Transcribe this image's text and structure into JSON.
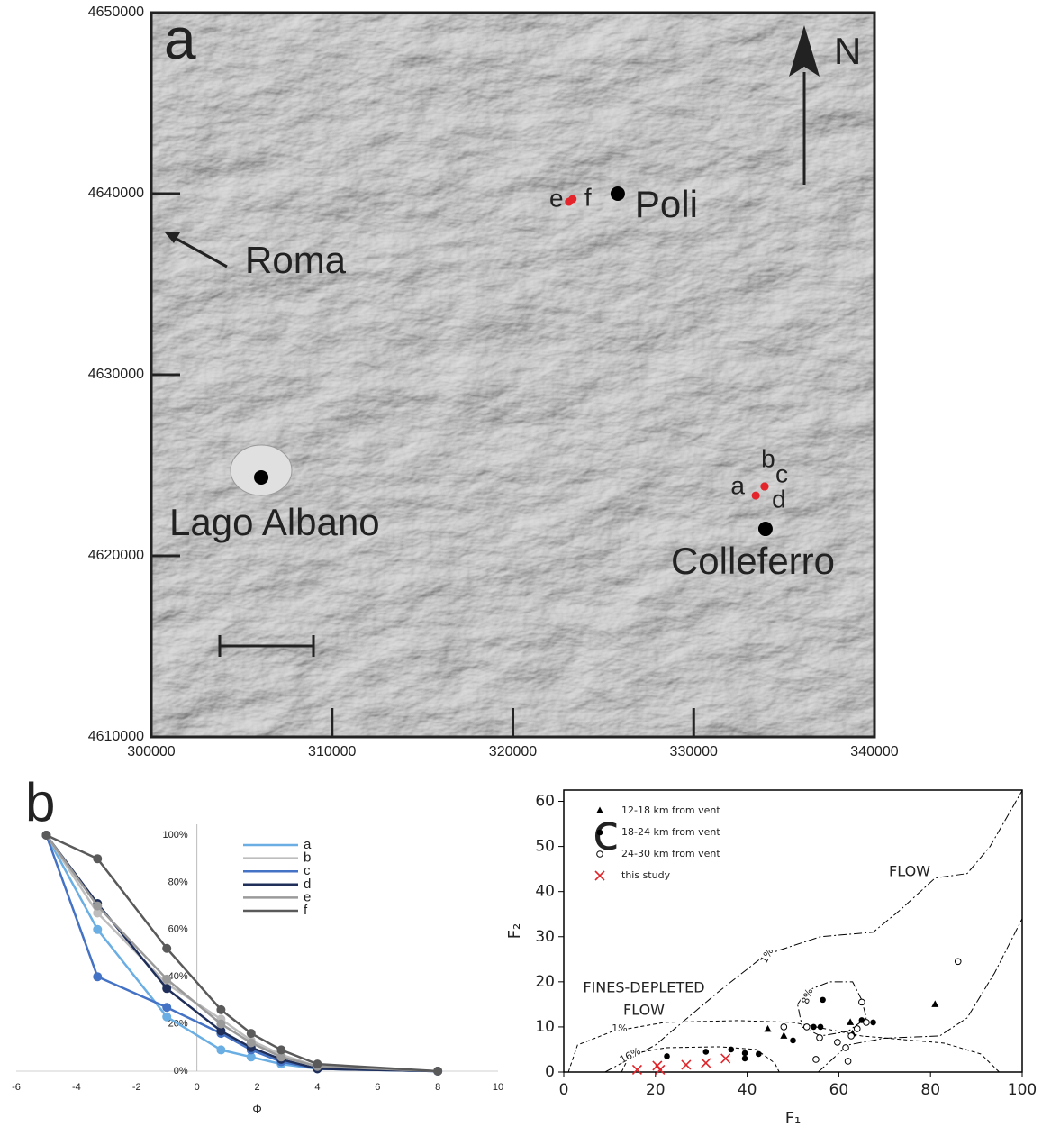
{
  "chart_data": [
    {
      "type": "map",
      "panel": "a",
      "xlim": [
        300000,
        340000
      ],
      "ylim": [
        4610000,
        4650000
      ],
      "xticks": [
        300000,
        310000,
        320000,
        330000,
        340000
      ],
      "yticks": [
        4610000,
        4620000,
        4630000,
        4640000,
        4650000
      ],
      "places": [
        {
          "label": "Poli",
          "x": 325800,
          "y": 4640000
        },
        {
          "label": "Lago Albano",
          "x": 306080,
          "y": 4624330
        },
        {
          "label": "Colleferro",
          "x": 333970,
          "y": 4621490
        }
      ],
      "sites": [
        {
          "label": "e",
          "x": 323100,
          "y": 4639550
        },
        {
          "label": "f",
          "x": 323300,
          "y": 4639700
        },
        {
          "label": "a",
          "x": 333430,
          "y": 4623330
        },
        {
          "label": "b",
          "x": 333920,
          "y": 4623830
        },
        {
          "label": "c",
          "x": 333920,
          "y": 4623830
        },
        {
          "label": "d",
          "x": 333920,
          "y": 4623830
        }
      ],
      "site_color": "#e3242b",
      "annotations": [
        "Roma",
        "N"
      ]
    },
    {
      "type": "line",
      "panel": "b",
      "xlabel": "Φ",
      "x": [
        -5,
        -3.3,
        -1,
        0.8,
        1.8,
        2.8,
        4,
        8
      ],
      "xlim": [
        -6,
        10
      ],
      "xticks": [
        -6,
        -4,
        -2,
        0,
        2,
        4,
        6,
        8,
        10
      ],
      "ylim": [
        0,
        100
      ],
      "yticks": [
        {
          "value": 0,
          "label": "0%"
        },
        {
          "value": 20,
          "label": "20%"
        },
        {
          "value": 40,
          "label": "40%"
        },
        {
          "value": 60,
          "label": "60%"
        },
        {
          "value": 80,
          "label": "80%"
        },
        {
          "value": 100,
          "label": "100%"
        }
      ],
      "series": [
        {
          "name": "a",
          "color": "#6aaee3",
          "values": [
            100,
            60,
            23,
            9,
            6,
            3,
            1,
            0
          ]
        },
        {
          "name": "b",
          "color": "#bdbdbd",
          "values": [
            100,
            67,
            37,
            22,
            13,
            7,
            2,
            0
          ]
        },
        {
          "name": "c",
          "color": "#4472c4",
          "values": [
            100,
            40,
            27,
            16,
            9,
            4,
            1,
            0
          ]
        },
        {
          "name": "d",
          "color": "#1f2f5a",
          "values": [
            100,
            71,
            35,
            17,
            10,
            5,
            1,
            0
          ]
        },
        {
          "name": "e",
          "color": "#9a9a9a",
          "values": [
            100,
            70,
            39,
            20,
            12,
            6,
            2,
            0
          ]
        },
        {
          "name": "f",
          "color": "#5a5a5a",
          "values": [
            100,
            90,
            52,
            26,
            16,
            9,
            3,
            0
          ]
        }
      ]
    },
    {
      "type": "scatter",
      "panel": "c",
      "xlabel": "F₁",
      "ylabel": "F₂",
      "xlim": [
        0,
        100
      ],
      "ylim": [
        0,
        62.5
      ],
      "xticks": [
        0,
        20,
        40,
        60,
        80,
        100
      ],
      "yticks": [
        0,
        10,
        20,
        30,
        40,
        50,
        60
      ],
      "series": [
        {
          "name": "12-18 km from vent",
          "marker": "triangle",
          "color": "#000000",
          "x": [
            44.5,
            48,
            62.5,
            63,
            81
          ],
          "y": [
            9.5,
            8,
            11,
            8.5,
            15
          ]
        },
        {
          "name": "18-24 km from vent",
          "marker": "circle",
          "color": "#000000",
          "x": [
            22.5,
            31,
            36.5,
            39.5,
            39.5,
            42.5,
            50,
            54.5,
            56,
            56.5,
            65,
            67.5
          ],
          "y": [
            3.5,
            4.5,
            5,
            4.2,
            3,
            4,
            7,
            10,
            10,
            16,
            11.5,
            11
          ]
        },
        {
          "name": "24-30 km from vent",
          "marker": "open-circle",
          "color": "#000000",
          "x": [
            48,
            53,
            55.8,
            55,
            59.7,
            61.5,
            62,
            62.7,
            64,
            65,
            66,
            86
          ],
          "y": [
            10,
            10,
            7.6,
            2.8,
            6.6,
            5.4,
            2.4,
            8,
            9.6,
            15.5,
            11,
            24.5
          ]
        },
        {
          "name": "this study",
          "marker": "x",
          "color": "#e0242a",
          "x": [
            16,
            20.4,
            21,
            26.7,
            31,
            35.3
          ],
          "y": [
            0.5,
            1.4,
            0.5,
            1.6,
            2,
            3
          ]
        }
      ],
      "contours": [
        {
          "label": "1%",
          "style": "dash-dot",
          "x": [
            9,
            20,
            34,
            44,
            56,
            67.5,
            73.5,
            81,
            88,
            93,
            100
          ],
          "y": [
            0,
            6,
            18,
            26,
            30,
            31,
            36,
            43,
            44,
            50,
            62.4
          ]
        },
        {
          "style": "dash-dot",
          "x": [
            55.5,
            62,
            70,
            82,
            88,
            94,
            100
          ],
          "y": [
            0,
            6,
            7.5,
            8,
            12,
            22,
            34
          ]
        },
        {
          "label": "8%",
          "style": "dash-dot",
          "x": [
            51,
            53,
            58,
            63,
            65,
            66,
            62,
            56,
            52,
            51
          ],
          "y": [
            15,
            18,
            20,
            20,
            16,
            12,
            9,
            8,
            10,
            15
          ]
        },
        {
          "label": "1%",
          "style": "dashed",
          "x": [
            1,
            3,
            10.6,
            22,
            38,
            50,
            65,
            83,
            91,
            95
          ],
          "y": [
            0,
            6,
            9,
            11,
            11.4,
            11,
            8,
            6.4,
            4,
            0
          ]
        },
        {
          "label": "16%",
          "style": "dashed",
          "x": [
            12.6,
            14.5,
            22.4,
            34,
            42,
            46,
            47
          ],
          "y": [
            0,
            4,
            5.4,
            5.6,
            5,
            2,
            0
          ]
        }
      ],
      "annotations": [
        "FLOW",
        "FINES-DEPLETED",
        "FLOW"
      ]
    }
  ]
}
